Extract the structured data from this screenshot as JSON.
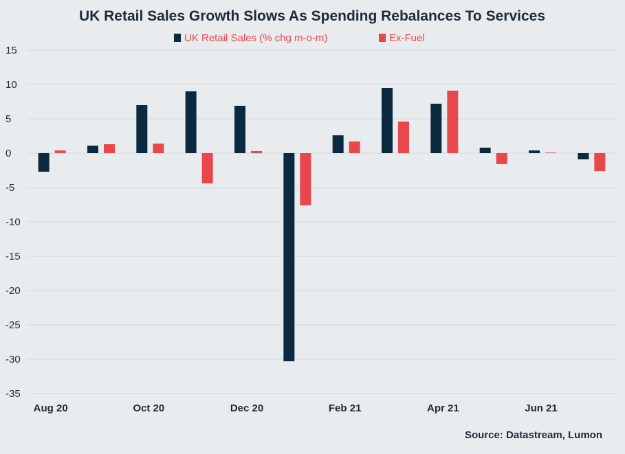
{
  "chart_data": {
    "type": "bar",
    "title": "UK Retail Sales Growth Slows As Spending Rebalances To Services",
    "categories": [
      "Aug 20",
      "Sep 20",
      "Oct 20",
      "Nov 20",
      "Dec 20",
      "Jan 21",
      "Feb 21",
      "Mar 21",
      "Apr 21",
      "May 21",
      "Jun 21",
      "Jul 21"
    ],
    "x_tick_labels": [
      "Aug 20",
      "",
      "Oct 20",
      "",
      "Dec 20",
      "",
      "Feb 21",
      "",
      "Apr 21",
      "",
      "Jun 21",
      ""
    ],
    "series": [
      {
        "name": "UK Retail Sales (% chg m-o-m)",
        "color": "#0b2a3f",
        "values": [
          -2.7,
          1.1,
          7.0,
          9.0,
          6.9,
          -30.3,
          2.6,
          9.5,
          7.2,
          0.8,
          0.4,
          -0.9
        ]
      },
      {
        "name": "Ex-Fuel",
        "color": "#e8474c",
        "values": [
          0.4,
          1.3,
          1.4,
          -4.4,
          0.3,
          -7.6,
          1.7,
          4.6,
          9.1,
          -1.6,
          0.1,
          -2.6
        ]
      }
    ],
    "ylim": [
      -35,
      15
    ],
    "y_ticks": [
      15,
      10,
      5,
      0,
      -5,
      -10,
      -15,
      -20,
      -25,
      -30,
      -35
    ],
    "grid": true,
    "legend_position": "top-center",
    "xlabel": "",
    "ylabel": "",
    "source": "Source: Datastream, Lumon"
  }
}
